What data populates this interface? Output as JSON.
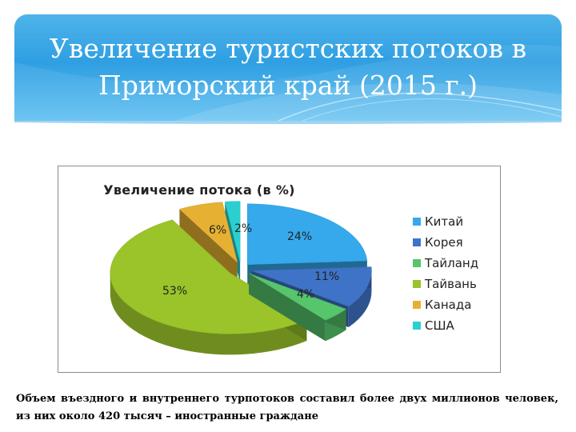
{
  "slide": {
    "title_line1": "Увеличение туристских потоков в",
    "title_line2": "Приморский край (2015 г.)",
    "caption": "Объем въездного и внутреннего турпотоков составил более двух миллионов человек, из них около 420 тысяч – иностранные граждане"
  },
  "chart_data": {
    "type": "pie",
    "title": "Увеличение потока (в %)",
    "categories": [
      "Китай",
      "Корея",
      "Тайланд",
      "Тайвань",
      "Канада",
      "США"
    ],
    "values": [
      24,
      11,
      4,
      53,
      6,
      2
    ],
    "labels": [
      "24%",
      "11%",
      "4%",
      "53%",
      "6%",
      "2%"
    ],
    "colors": [
      "#35a9ec",
      "#3f73c7",
      "#56c56c",
      "#9ac429",
      "#e6b133",
      "#2ad0d0"
    ],
    "exploded": true,
    "style": "3d",
    "legend_position": "right"
  }
}
